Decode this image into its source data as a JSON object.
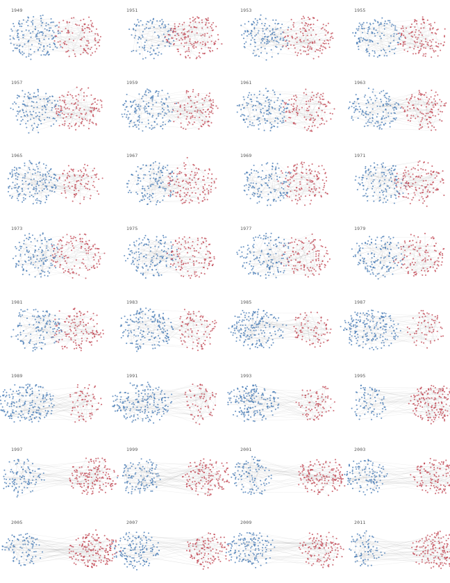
{
  "figure": {
    "colors": {
      "blue": "#3f76b3",
      "red": "#c0404e",
      "edge": "#8a8a8a",
      "label": "#555555"
    },
    "panels": [
      {
        "year": "1949",
        "blue_share": 0.6,
        "separation": 0.15
      },
      {
        "year": "1951",
        "blue_share": 0.4,
        "separation": 0.15
      },
      {
        "year": "1953",
        "blue_share": 0.5,
        "separation": 0.2
      },
      {
        "year": "1955",
        "blue_share": 0.5,
        "separation": 0.2
      },
      {
        "year": "1957",
        "blue_share": 0.5,
        "separation": 0.15
      },
      {
        "year": "1959",
        "blue_share": 0.6,
        "separation": 0.25
      },
      {
        "year": "1961",
        "blue_share": 0.55,
        "separation": 0.25
      },
      {
        "year": "1963",
        "blue_share": 0.55,
        "separation": 0.35
      },
      {
        "year": "1965",
        "blue_share": 0.65,
        "separation": 0.25
      },
      {
        "year": "1967",
        "blue_share": 0.5,
        "separation": 0.1
      },
      {
        "year": "1969",
        "blue_share": 0.5,
        "separation": 0.05
      },
      {
        "year": "1971",
        "blue_share": 0.5,
        "separation": 0.1
      },
      {
        "year": "1973",
        "blue_share": 0.5,
        "separation": 0.08
      },
      {
        "year": "1975",
        "blue_share": 0.55,
        "separation": 0.1
      },
      {
        "year": "1977",
        "blue_share": 0.55,
        "separation": 0.08
      },
      {
        "year": "1979",
        "blue_share": 0.55,
        "separation": 0.12
      },
      {
        "year": "1981",
        "blue_share": 0.5,
        "separation": 0.1
      },
      {
        "year": "1983",
        "blue_share": 0.65,
        "separation": 0.35
      },
      {
        "year": "1985",
        "blue_share": 0.7,
        "separation": 0.45
      },
      {
        "year": "1987",
        "blue_share": 0.75,
        "separation": 0.45
      },
      {
        "year": "1989",
        "blue_share": 0.75,
        "separation": 0.5
      },
      {
        "year": "1991",
        "blue_share": 0.75,
        "separation": 0.5
      },
      {
        "year": "1993",
        "blue_share": 0.7,
        "separation": 0.7
      },
      {
        "year": "1995",
        "blue_share": 0.3,
        "separation": 0.75
      },
      {
        "year": "1997",
        "blue_share": 0.4,
        "separation": 0.8
      },
      {
        "year": "1999",
        "blue_share": 0.45,
        "separation": 0.75
      },
      {
        "year": "2001",
        "blue_share": 0.4,
        "separation": 0.8
      },
      {
        "year": "2003",
        "blue_share": 0.45,
        "separation": 0.85
      },
      {
        "year": "2005",
        "blue_share": 0.35,
        "separation": 0.85
      },
      {
        "year": "2007",
        "blue_share": 0.55,
        "separation": 0.85
      },
      {
        "year": "2009",
        "blue_share": 0.55,
        "separation": 0.8
      },
      {
        "year": "2011",
        "blue_share": 0.3,
        "separation": 0.9
      }
    ]
  }
}
